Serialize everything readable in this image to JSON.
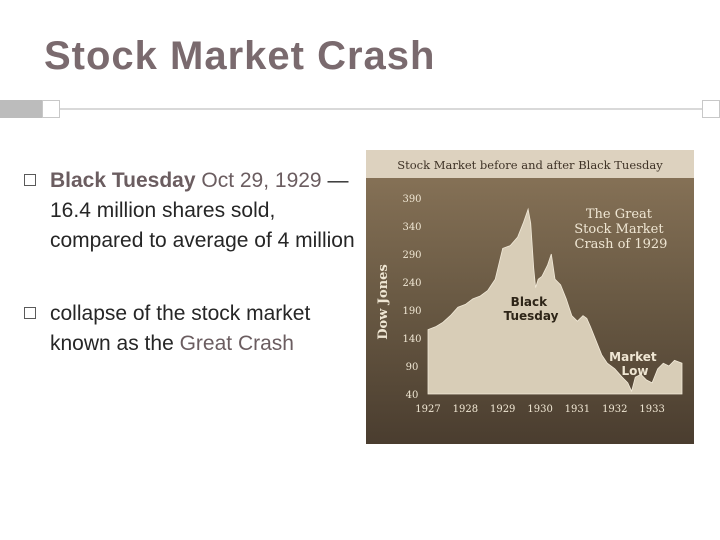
{
  "slide": {
    "title": "Stock Market Crash"
  },
  "bullets": [
    {
      "label": "Black Tuesday",
      "date": "Oct 29, 1929",
      "text": " —16.4 million shares sold, compared to average of 4 million"
    },
    {
      "text": "collapse of the stock market known as the ",
      "highlight": "Great Crash"
    }
  ],
  "colors": {
    "title": "#7a6a6e",
    "accent": "#6b5d60",
    "chart_bg": "#8b765a",
    "chart_area": "#d8cdb7",
    "chart_text": "#efe6d3"
  },
  "chart_data": {
    "type": "area",
    "title": "Stock Market before and after Black Tuesday",
    "ylabel": "Dow Jones",
    "xlabel": "",
    "x_ticks": [
      "1927",
      "1928",
      "1929",
      "1930",
      "1931",
      "1932",
      "1933"
    ],
    "y_ticks": [
      40,
      90,
      140,
      190,
      240,
      290,
      340,
      390
    ],
    "ylim": [
      40,
      390
    ],
    "xlim": [
      1927,
      1933.8
    ],
    "grid": false,
    "x": [
      1927.0,
      1927.2,
      1927.4,
      1927.6,
      1927.8,
      1928.0,
      1928.2,
      1928.4,
      1928.6,
      1928.8,
      1929.0,
      1929.2,
      1929.4,
      1929.55,
      1929.68,
      1929.75,
      1929.83,
      1929.88,
      1929.95,
      1930.05,
      1930.2,
      1930.3,
      1930.4,
      1930.55,
      1930.7,
      1930.85,
      1931.0,
      1931.15,
      1931.25,
      1931.35,
      1931.5,
      1931.65,
      1931.8,
      1932.0,
      1932.2,
      1932.35,
      1932.45,
      1932.55,
      1932.7,
      1932.85,
      1933.0,
      1933.15,
      1933.3,
      1933.45,
      1933.6,
      1933.8
    ],
    "y": [
      155,
      160,
      168,
      180,
      195,
      200,
      210,
      215,
      225,
      245,
      300,
      305,
      320,
      345,
      370,
      345,
      265,
      230,
      245,
      250,
      270,
      290,
      245,
      235,
      210,
      180,
      170,
      180,
      175,
      160,
      135,
      110,
      95,
      85,
      70,
      60,
      45,
      70,
      75,
      65,
      60,
      85,
      95,
      90,
      100,
      95
    ],
    "annotations": [
      {
        "text": "The Great Stock Market Crash of 1929",
        "lines": [
          "The Great",
          "Stock Market",
          "Crash of 1929"
        ]
      },
      {
        "text": "Black Tuesday",
        "lines": [
          "Black",
          "Tuesday"
        ]
      },
      {
        "text": "Market Low",
        "lines": [
          "Market",
          "Low"
        ]
      }
    ]
  }
}
